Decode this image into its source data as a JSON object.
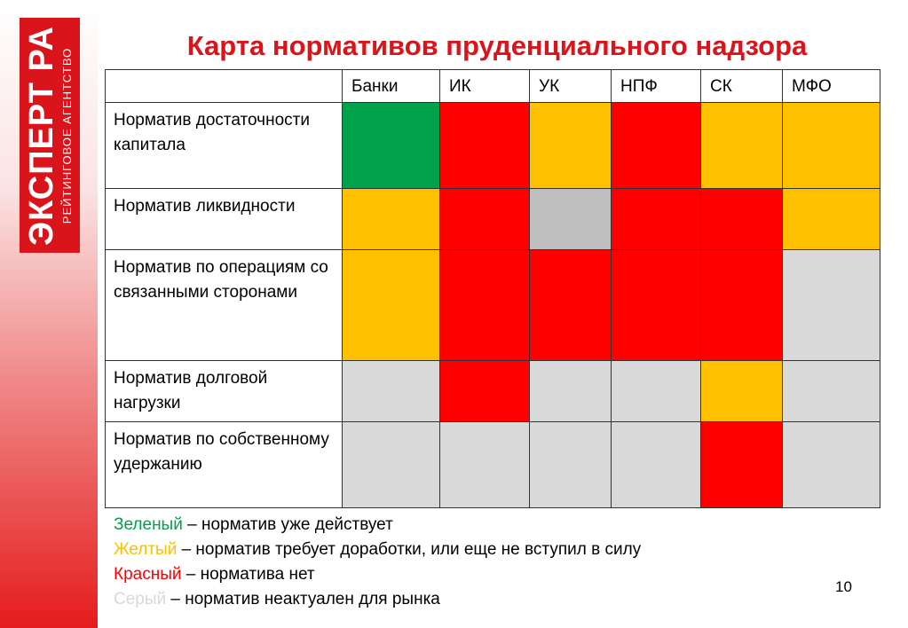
{
  "logo": {
    "main": "ЭКСПЕРТ РА",
    "sub": "РЕЙТИНГОВОЕ АГЕНТСТВО"
  },
  "title": "Карта нормативов пруденциального надзора",
  "table": {
    "columns": [
      "Банки",
      "ИК",
      "УК",
      "НПФ",
      "СК",
      "МФО"
    ],
    "rows": [
      {
        "label": "Норматив достаточности капитала",
        "statuses": [
          "green",
          "red",
          "yellow",
          "red",
          "yellow",
          "yellow"
        ]
      },
      {
        "label": "Норматив ликвидности",
        "statuses": [
          "yellow",
          "red",
          "gray",
          "red",
          "red",
          "yellow"
        ]
      },
      {
        "label": "Норматив по операциям со связанными сторонами",
        "statuses": [
          "yellow",
          "red",
          "red",
          "red",
          "red",
          "lightgray"
        ]
      },
      {
        "label": "Норматив долговой нагрузки",
        "statuses": [
          "lightgray",
          "red",
          "lightgray",
          "lightgray",
          "yellow",
          "lightgray"
        ]
      },
      {
        "label": "Норматив по собственному удержанию",
        "statuses": [
          "lightgray",
          "lightgray",
          "lightgray",
          "lightgray",
          "red",
          "lightgray"
        ]
      }
    ]
  },
  "legend": [
    {
      "term": "Зеленый",
      "text": " – норматив уже действует",
      "color": "#00a14b"
    },
    {
      "term": "Желтый",
      "text": " – норматив требует доработки, или еще не вступил в силу",
      "color": "#ffc000"
    },
    {
      "term": "Красный",
      "text": " – норматива нет",
      "color": "#ff0000"
    },
    {
      "term": "Серый",
      "text": " – норматив неактуален для рынка",
      "color": "#d9d9d9"
    }
  ],
  "page_number": "10",
  "colors": {
    "brand_red": "#d9151b",
    "green": "#00a14b",
    "yellow": "#ffc000",
    "red": "#ff0000",
    "gray": "#bfbfbf",
    "lightgray": "#d9d9d9"
  }
}
